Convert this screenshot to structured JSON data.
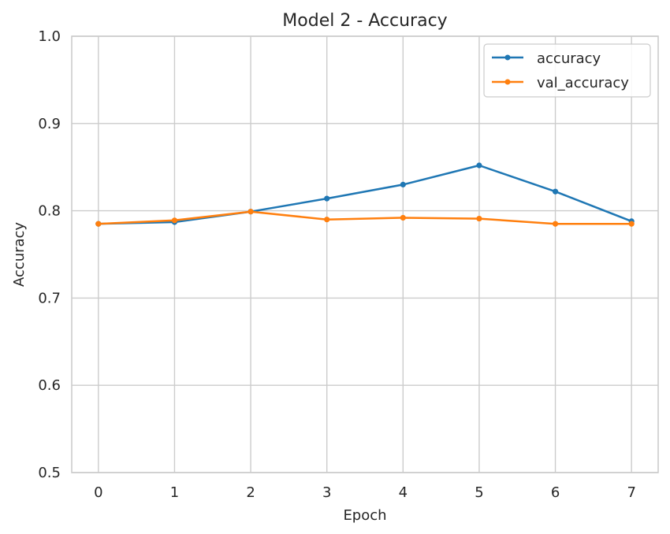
{
  "chart_data": {
    "type": "line",
    "title": "Model 2 - Accuracy",
    "xlabel": "Epoch",
    "ylabel": "Accuracy",
    "x": [
      0,
      1,
      2,
      3,
      4,
      5,
      6,
      7
    ],
    "xlim": [
      -0.35,
      7.35
    ],
    "ylim": [
      0.5,
      1.0
    ],
    "xticks": [
      "0",
      "1",
      "2",
      "3",
      "4",
      "5",
      "6",
      "7"
    ],
    "yticks": [
      "0.5",
      "0.6",
      "0.7",
      "0.8",
      "0.9",
      "1.0"
    ],
    "grid": true,
    "legend_position": "top-right",
    "series": [
      {
        "name": "accuracy",
        "color": "#1f77b4",
        "marker": "circle",
        "values": [
          0.785,
          0.787,
          0.799,
          0.814,
          0.83,
          0.852,
          0.822,
          0.788
        ]
      },
      {
        "name": "val_accuracy",
        "color": "#ff7f0e",
        "marker": "circle",
        "values": [
          0.785,
          0.789,
          0.799,
          0.79,
          0.792,
          0.791,
          0.785,
          0.785
        ]
      }
    ]
  }
}
